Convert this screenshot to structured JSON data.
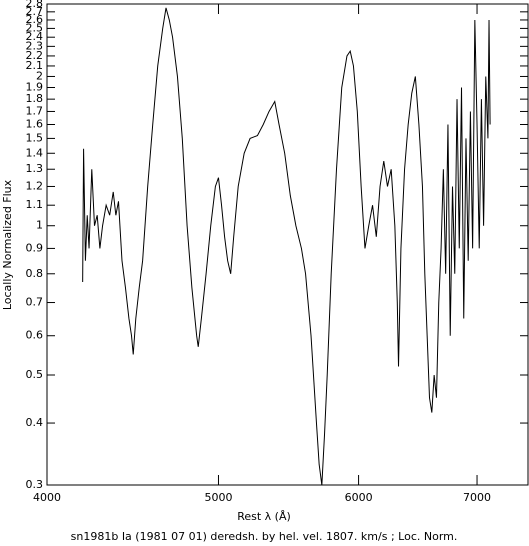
{
  "chart_data": {
    "type": "line",
    "xlabel": "Rest λ (Å)",
    "ylabel": "Locally Normalized Flux",
    "caption": "sn1981b Ia (1981 07 01) deredsh. by hel. vel.  1807. km/s ;  Loc. Norm.",
    "xscale": "log",
    "yscale": "log",
    "color": "#000000",
    "xlim": [
      4000,
      7480
    ],
    "ylim": [
      0.3,
      2.8
    ],
    "xticks": [
      4000,
      5000,
      6000,
      7000
    ],
    "yticks": [
      0.3,
      0.4,
      0.5,
      0.6,
      0.7,
      0.8,
      0.9,
      1,
      1.1,
      1.2,
      1.3,
      1.4,
      1.5,
      1.6,
      1.7,
      1.8,
      1.9,
      2,
      2.1,
      2.2,
      2.3,
      2.4,
      2.5,
      2.6,
      2.7,
      2.8
    ],
    "x": [
      4190,
      4195,
      4205,
      4215,
      4225,
      4240,
      4255,
      4270,
      4285,
      4300,
      4320,
      4340,
      4360,
      4375,
      4390,
      4410,
      4430,
      4450,
      4465,
      4475,
      4490,
      4510,
      4530,
      4560,
      4590,
      4620,
      4650,
      4670,
      4690,
      4710,
      4740,
      4770,
      4800,
      4830,
      4860,
      4870,
      4890,
      4920,
      4950,
      4980,
      5000,
      5020,
      5040,
      5060,
      5080,
      5100,
      5130,
      5170,
      5210,
      5260,
      5300,
      5340,
      5380,
      5410,
      5450,
      5490,
      5530,
      5570,
      5600,
      5640,
      5680,
      5700,
      5720,
      5740,
      5760,
      5790,
      5830,
      5870,
      5910,
      5935,
      5960,
      5990,
      6020,
      6050,
      6080,
      6110,
      6140,
      6170,
      6200,
      6230,
      6260,
      6290,
      6310,
      6320,
      6340,
      6370,
      6400,
      6430,
      6460,
      6490,
      6520,
      6540,
      6560,
      6580,
      6600,
      6620,
      6640,
      6660,
      6680,
      6700,
      6720,
      6740,
      6760,
      6780,
      6800,
      6820,
      6840,
      6860,
      6880,
      6900,
      6920,
      6940,
      6960,
      6980,
      7000,
      7020,
      7040,
      7060,
      7080,
      7100,
      7110,
      7120
    ],
    "values": [
      0.77,
      1.43,
      0.85,
      1.05,
      0.9,
      1.3,
      1.0,
      1.05,
      0.9,
      1.0,
      1.1,
      1.05,
      1.17,
      1.05,
      1.12,
      0.85,
      0.75,
      0.65,
      0.6,
      0.55,
      0.65,
      0.75,
      0.85,
      1.2,
      1.6,
      2.1,
      2.5,
      2.75,
      2.6,
      2.4,
      2.0,
      1.5,
      1.0,
      0.75,
      0.6,
      0.57,
      0.65,
      0.8,
      1.0,
      1.2,
      1.25,
      1.1,
      0.95,
      0.85,
      0.8,
      0.95,
      1.2,
      1.4,
      1.5,
      1.52,
      1.6,
      1.7,
      1.78,
      1.6,
      1.4,
      1.15,
      1.0,
      0.9,
      0.8,
      0.6,
      0.4,
      0.33,
      0.3,
      0.38,
      0.5,
      0.8,
      1.3,
      1.9,
      2.2,
      2.25,
      2.1,
      1.7,
      1.2,
      0.9,
      1.0,
      1.1,
      0.95,
      1.2,
      1.35,
      1.2,
      1.3,
      1.0,
      0.7,
      0.52,
      0.9,
      1.3,
      1.6,
      1.85,
      2.0,
      1.6,
      1.2,
      0.8,
      0.6,
      0.45,
      0.42,
      0.5,
      0.45,
      0.7,
      0.9,
      1.3,
      0.8,
      1.6,
      0.6,
      1.2,
      0.8,
      1.8,
      0.9,
      1.9,
      0.65,
      1.5,
      0.85,
      1.7,
      0.9,
      2.6,
      1.6,
      0.9,
      1.8,
      1.0,
      2.0,
      1.5,
      2.6,
      1.6
    ]
  }
}
